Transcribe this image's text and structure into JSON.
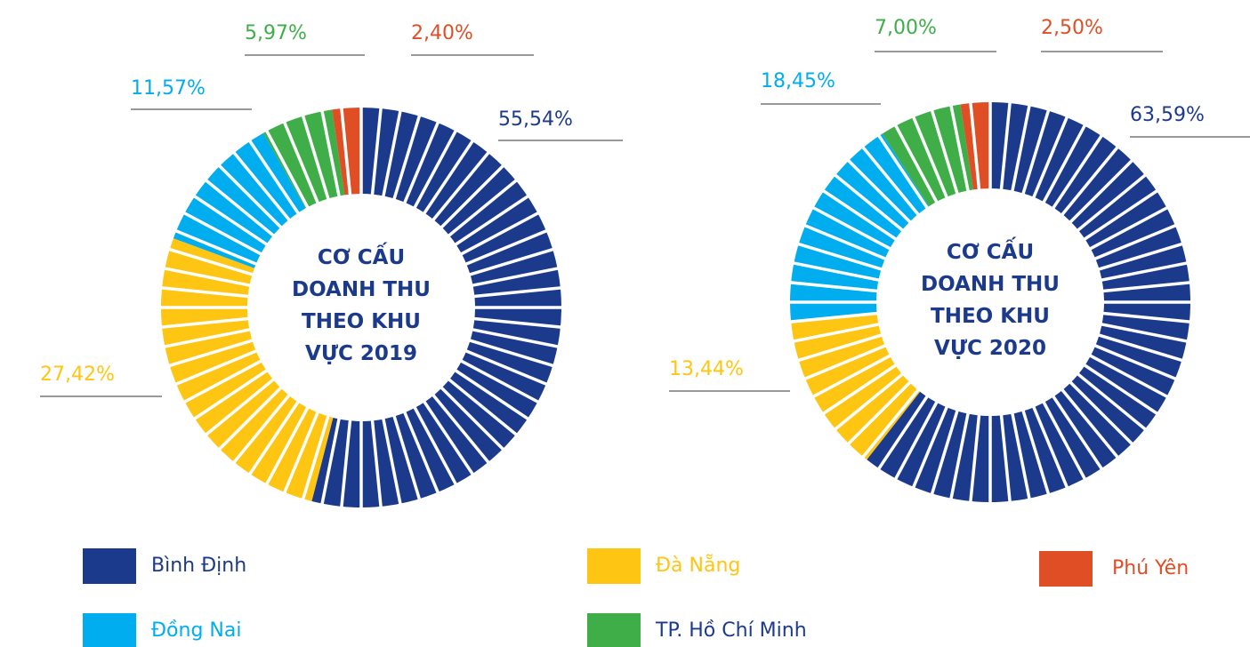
{
  "chart_data": [
    {
      "type": "pie",
      "title": "CƠ CẤU DOANH THU THEO KHU VỰC 2019",
      "categories": [
        "Bình Định",
        "Đà Nẵng",
        "Đồng Nai",
        "TP. Hồ Chí Minh",
        "Phú Yên"
      ],
      "colors": [
        "#1c3a8c",
        "#fec512",
        "#00adee",
        "#3fae49",
        "#e04e26"
      ],
      "values": [
        55.54,
        27.42,
        11.57,
        5.97,
        2.4
      ],
      "value_labels": [
        "55,54%",
        "27,42%",
        "11,57%",
        "5,97%",
        "2,40%"
      ]
    },
    {
      "type": "pie",
      "title": "CƠ CẤU DOANH THU THEO KHU VỰC 2020",
      "categories": [
        "Bình Định",
        "Đà Nẵng",
        "Đồng Nai",
        "TP. Hồ Chí Minh",
        "Phú Yên"
      ],
      "colors": [
        "#1c3a8c",
        "#fec512",
        "#00adee",
        "#3fae49",
        "#e04e26"
      ],
      "values": [
        63.59,
        13.44,
        18.45,
        7.0,
        2.5
      ],
      "value_labels": [
        "63,59%",
        "13,44%",
        "18,45%",
        "7,00%",
        "2,50%"
      ]
    }
  ]
}
